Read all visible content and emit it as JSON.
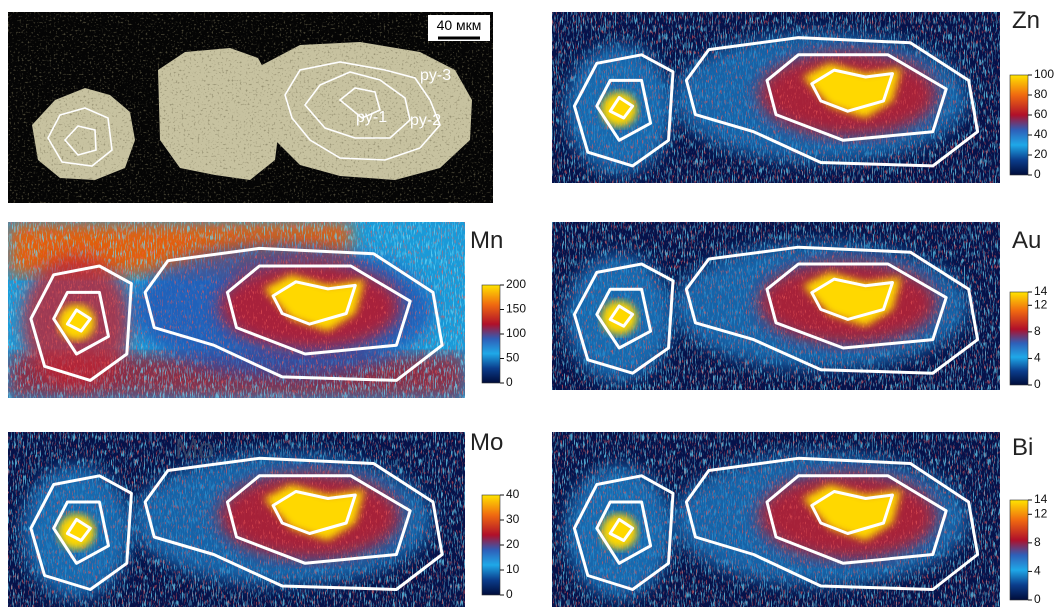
{
  "figure": {
    "scale_bar": "40 мкм",
    "grain_labels": [
      "py-1",
      "py-2",
      "py-3"
    ],
    "overlay_label": "Mo",
    "panels": [
      {
        "element": "Zn",
        "lim": [
          0,
          100
        ],
        "ticks": [
          0,
          20,
          40,
          60,
          80,
          100
        ]
      },
      {
        "element": "Mn",
        "lim": [
          0,
          200
        ],
        "ticks": [
          0,
          50,
          100,
          150,
          200
        ]
      },
      {
        "element": "Au",
        "lim": [
          0,
          14
        ],
        "ticks": [
          0,
          4,
          8,
          12,
          14
        ]
      },
      {
        "element": "Mo",
        "lim": [
          0,
          40
        ],
        "ticks": [
          0,
          10,
          20,
          30,
          40
        ]
      },
      {
        "element": "Bi",
        "lim": [
          0,
          14
        ],
        "ticks": [
          0,
          4,
          8,
          12,
          14
        ]
      }
    ]
  }
}
